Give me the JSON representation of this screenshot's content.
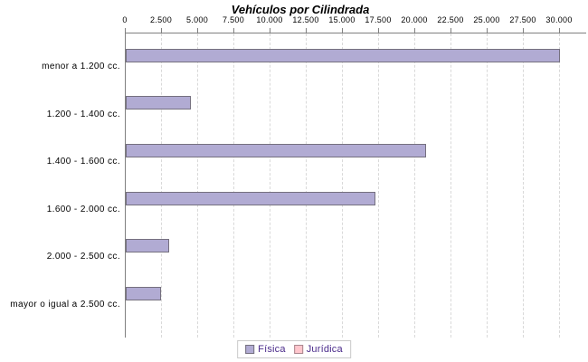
{
  "chart_data": {
    "type": "bar",
    "orientation": "horizontal",
    "title": "Vehículos por Cilindrada",
    "categories": [
      "menor a 1.200 cc.",
      "1.200 - 1.400 cc.",
      "1.400 - 1.600 cc.",
      "1.600 - 2.000 cc.",
      "2.000 - 2.500 cc.",
      "mayor o igual a 2.500 cc."
    ],
    "series": [
      {
        "name": "Física",
        "values": [
          30000,
          4500,
          20750,
          17250,
          3000,
          2450
        ]
      },
      {
        "name": "Jurídica",
        "values": [
          0,
          0,
          0,
          0,
          0,
          0
        ]
      }
    ],
    "xlim": [
      0,
      30000
    ],
    "x_tick_interval": 2500,
    "x_tick_labels": [
      "0",
      "2.500",
      "5.000",
      "7.500",
      "10.000",
      "12.500",
      "15.000",
      "17.500",
      "20.000",
      "22.500",
      "25.000",
      "27.500",
      "30.000"
    ],
    "xlabel": "",
    "ylabel": "",
    "grid": "vertical dashed gridlines, axis on top",
    "legend_position": "bottom-center"
  },
  "colors": {
    "fisica_fill": "#b1abd3",
    "fisica_border": "#75707f",
    "juridica_fill": "#ffc6cd",
    "juridica_border": "#a9868e",
    "legend_text": "#4a2a8a",
    "axis_line": "#808080",
    "gridline": "#d9d9d9",
    "title_text": "#000000",
    "tick_text": "#000000"
  }
}
